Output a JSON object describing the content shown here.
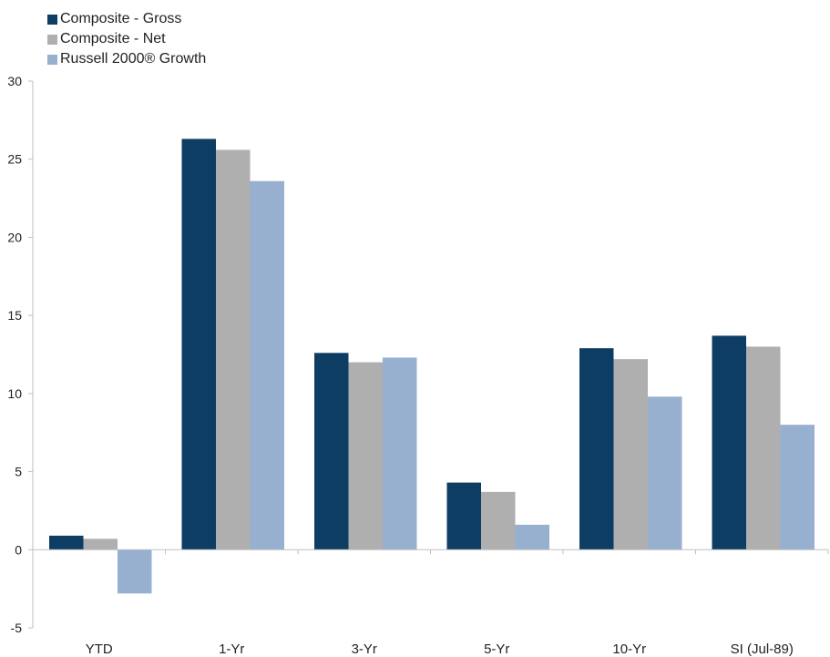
{
  "chart_data": {
    "type": "bar",
    "categories": [
      "YTD",
      "1-Yr",
      "3-Yr",
      "5-Yr",
      "10-Yr",
      "SI (Jul-89)"
    ],
    "series": [
      {
        "name": "Composite - Gross",
        "color": "#0e3d63",
        "values": [
          0.9,
          26.3,
          12.6,
          4.3,
          12.9,
          13.7
        ]
      },
      {
        "name": "Composite - Net",
        "color": "#afafaf",
        "values": [
          0.7,
          25.6,
          12.0,
          3.7,
          12.2,
          13.0
        ]
      },
      {
        "name": "Russell 2000® Growth",
        "color": "#97b0d0",
        "values": [
          -2.8,
          23.6,
          12.3,
          1.6,
          9.8,
          8.0
        ]
      }
    ],
    "ylim": [
      -5,
      30
    ],
    "yticks": [
      -5,
      0,
      5,
      10,
      15,
      20,
      25,
      30
    ],
    "legend_position": "top-left",
    "grid": false
  }
}
